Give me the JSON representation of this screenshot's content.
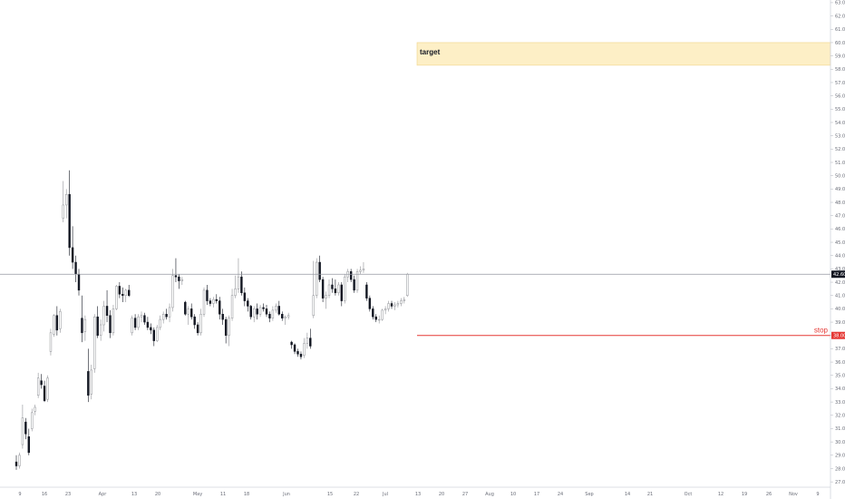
{
  "chart_data": {
    "type": "candlestick",
    "title": "",
    "xlabel": "",
    "ylabel": "",
    "ylim": [
      26.6,
      63.2
    ],
    "grid": false,
    "y_ticks": [
      27,
      28,
      29,
      30,
      31,
      32,
      33,
      34,
      35,
      36,
      37,
      38,
      39,
      40,
      41,
      42,
      43,
      44,
      45,
      46,
      47,
      48,
      49,
      50,
      51,
      52,
      53,
      54,
      55,
      56,
      57,
      58,
      59,
      60,
      61,
      62,
      63
    ],
    "x_tick_labels": [
      "9",
      "16",
      "23",
      "Apr",
      "13",
      "20",
      "May",
      "11",
      "18",
      "Jun",
      "15",
      "22",
      "Jul",
      "13",
      "20",
      "27",
      "Aug",
      "10",
      "17",
      "24",
      "Sep",
      "14",
      "21",
      "Oct",
      "12",
      "19",
      "26",
      "Nov",
      "9"
    ],
    "current_price": {
      "value": 42.6,
      "label": "42.60"
    },
    "stop": {
      "label": "stop",
      "value": 38.0,
      "value_label": "38.00"
    },
    "target_zone": {
      "label": "target",
      "from": 58.3,
      "to": 60.0
    },
    "candles": [
      [
        28.5,
        29.0,
        27.9,
        28.2
      ],
      [
        28.2,
        29.2,
        28.0,
        29.0
      ],
      [
        29.8,
        32.8,
        29.5,
        31.8
      ],
      [
        31.5,
        31.8,
        30.2,
        30.6
      ],
      [
        30.4,
        31.0,
        29.0,
        29.2
      ],
      [
        31.0,
        32.5,
        30.8,
        32.2
      ],
      [
        32.3,
        32.8,
        32.0,
        32.6
      ],
      [
        33.5,
        35.2,
        33.3,
        34.8
      ],
      [
        34.6,
        35.1,
        34.0,
        34.3
      ],
      [
        34.2,
        34.6,
        33.0,
        33.1
      ],
      [
        33.2,
        35.0,
        33.0,
        34.8
      ],
      [
        36.8,
        38.5,
        36.5,
        38.2
      ],
      [
        38.1,
        39.6,
        37.9,
        39.5
      ],
      [
        39.5,
        40.2,
        38.0,
        38.4
      ],
      [
        38.5,
        40.0,
        38.2,
        39.8
      ],
      [
        46.8,
        49.6,
        46.5,
        47.8
      ],
      [
        47.8,
        49.0,
        46.8,
        48.6
      ],
      [
        48.6,
        50.4,
        44.0,
        44.6
      ],
      [
        44.6,
        46.2,
        43.0,
        43.5
      ],
      [
        43.5,
        44.0,
        42.0,
        42.6
      ],
      [
        42.6,
        43.0,
        41.0,
        41.4
      ],
      [
        39.3,
        41.0,
        37.5,
        38.2
      ],
      [
        38.3,
        39.5,
        37.6,
        39.2
      ],
      [
        35.3,
        37.0,
        33.0,
        33.5
      ],
      [
        33.6,
        35.8,
        33.2,
        35.4
      ],
      [
        35.5,
        39.6,
        35.2,
        39.4
      ],
      [
        39.4,
        40.2,
        37.8,
        38.0
      ],
      [
        38.0,
        39.2,
        37.6,
        38.8
      ],
      [
        38.8,
        40.6,
        38.3,
        40.2
      ],
      [
        40.2,
        41.4,
        39.0,
        39.5
      ],
      [
        39.5,
        39.9,
        37.8,
        38.2
      ],
      [
        38.2,
        40.3,
        38.0,
        40.0
      ],
      [
        40.0,
        41.8,
        39.9,
        41.7
      ],
      [
        41.7,
        42.0,
        40.8,
        41.1
      ],
      [
        41.1,
        41.6,
        40.5,
        41.0
      ],
      [
        41.0,
        41.5,
        40.5,
        41.4
      ],
      [
        41.4,
        41.8,
        40.9,
        41.0
      ],
      [
        38.2,
        39.5,
        38.0,
        39.3
      ],
      [
        39.3,
        39.6,
        38.4,
        38.6
      ],
      [
        38.6,
        39.6,
        38.4,
        39.4
      ],
      [
        39.4,
        39.8,
        39.0,
        39.5
      ],
      [
        39.5,
        39.7,
        38.8,
        39.0
      ],
      [
        39.0,
        39.4,
        38.4,
        38.6
      ],
      [
        38.6,
        38.9,
        38.1,
        38.4
      ],
      [
        38.4,
        38.6,
        37.2,
        37.6
      ],
      [
        37.6,
        38.8,
        37.5,
        38.6
      ],
      [
        38.6,
        39.5,
        38.4,
        39.2
      ],
      [
        39.2,
        39.8,
        38.9,
        39.6
      ],
      [
        39.6,
        40.0,
        39.2,
        39.4
      ],
      [
        39.4,
        40.4,
        39.0,
        40.1
      ],
      [
        40.1,
        43.0,
        39.8,
        42.5
      ],
      [
        42.5,
        43.8,
        42.0,
        42.4
      ],
      [
        42.4,
        42.6,
        41.5,
        42.1
      ],
      [
        42.1,
        42.4,
        41.8,
        42.2
      ],
      [
        40.5,
        40.6,
        39.5,
        39.6
      ],
      [
        39.6,
        40.2,
        38.8,
        40.0
      ],
      [
        40.0,
        40.4,
        39.2,
        39.4
      ],
      [
        39.4,
        39.6,
        38.5,
        38.8
      ],
      [
        38.8,
        39.0,
        38.0,
        38.2
      ],
      [
        38.2,
        40.0,
        38.0,
        39.6
      ],
      [
        39.6,
        41.6,
        39.4,
        41.4
      ],
      [
        41.4,
        41.8,
        40.3,
        40.6
      ],
      [
        40.6,
        40.8,
        40.2,
        40.4
      ],
      [
        40.4,
        40.9,
        40.1,
        40.7
      ],
      [
        40.7,
        41.1,
        40.4,
        40.6
      ],
      [
        40.6,
        40.9,
        39.2,
        39.6
      ],
      [
        39.6,
        40.0,
        38.8,
        39.2
      ],
      [
        39.2,
        39.4,
        37.4,
        38.0
      ],
      [
        38.0,
        39.5,
        37.2,
        39.3
      ],
      [
        39.3,
        41.5,
        39.1,
        41.0
      ],
      [
        41.0,
        42.5,
        40.8,
        41.5
      ],
      [
        41.5,
        43.8,
        41.2,
        42.4
      ],
      [
        42.4,
        42.8,
        41.0,
        41.2
      ],
      [
        41.2,
        41.6,
        40.2,
        40.6
      ],
      [
        40.6,
        40.8,
        39.8,
        40.2
      ],
      [
        40.2,
        40.3,
        39.2,
        39.4
      ],
      [
        39.4,
        40.2,
        39.0,
        40.0
      ],
      [
        40.0,
        40.4,
        39.2,
        39.6
      ],
      [
        39.6,
        40.3,
        39.4,
        40.1
      ],
      [
        40.1,
        40.4,
        39.8,
        40.0
      ],
      [
        40.0,
        40.3,
        39.4,
        39.6
      ],
      [
        39.6,
        39.8,
        39.0,
        39.3
      ],
      [
        39.3,
        40.2,
        39.1,
        39.9
      ],
      [
        39.9,
        40.4,
        39.7,
        40.2
      ],
      [
        40.2,
        40.6,
        39.5,
        39.6
      ],
      [
        39.6,
        39.8,
        39.1,
        39.3
      ],
      [
        39.3,
        39.5,
        38.8,
        39.4
      ],
      [
        39.4,
        39.7,
        39.2,
        39.5
      ],
      [
        37.5,
        37.6,
        37.0,
        37.3
      ],
      [
        37.3,
        37.4,
        36.6,
        36.8
      ],
      [
        36.8,
        37.0,
        36.4,
        36.6
      ],
      [
        36.6,
        36.8,
        36.2,
        36.4
      ],
      [
        36.5,
        37.8,
        36.3,
        37.4
      ],
      [
        37.4,
        38.2,
        37.0,
        37.8
      ],
      [
        37.8,
        38.5,
        37.0,
        37.2
      ],
      [
        39.5,
        43.6,
        39.3,
        41.0
      ],
      [
        41.0,
        43.8,
        40.8,
        43.5
      ],
      [
        43.5,
        44.0,
        42.0,
        42.2
      ],
      [
        42.2,
        42.4,
        40.5,
        40.8
      ],
      [
        40.8,
        41.3,
        40.0,
        41.0
      ],
      [
        41.0,
        42.2,
        40.8,
        41.8
      ],
      [
        41.8,
        42.3,
        41.2,
        41.5
      ],
      [
        41.5,
        42.2,
        41.0,
        41.2
      ],
      [
        41.2,
        42.0,
        41.0,
        41.8
      ],
      [
        41.8,
        42.0,
        40.2,
        40.6
      ],
      [
        40.6,
        42.6,
        40.4,
        42.4
      ],
      [
        42.4,
        43.0,
        42.0,
        42.8
      ],
      [
        42.8,
        43.0,
        42.0,
        42.2
      ],
      [
        42.2,
        42.5,
        41.2,
        41.4
      ],
      [
        41.4,
        43.0,
        41.2,
        42.8
      ],
      [
        42.8,
        43.2,
        42.6,
        42.9
      ],
      [
        42.9,
        43.5,
        42.7,
        43.0
      ],
      [
        41.8,
        42.0,
        40.6,
        40.8
      ],
      [
        40.8,
        41.0,
        39.8,
        40.0
      ],
      [
        40.0,
        40.2,
        39.2,
        39.4
      ],
      [
        39.4,
        39.6,
        39.0,
        39.2
      ],
      [
        39.2,
        39.5,
        38.9,
        39.2
      ],
      [
        39.2,
        40.0,
        39.1,
        39.9
      ],
      [
        39.9,
        40.2,
        39.6,
        40.0
      ],
      [
        40.0,
        40.6,
        39.8,
        40.4
      ],
      [
        40.4,
        40.6,
        40.0,
        40.2
      ],
      [
        40.2,
        40.5,
        39.9,
        40.3
      ],
      [
        40.3,
        40.6,
        40.1,
        40.4
      ],
      [
        40.4,
        40.8,
        40.2,
        40.6
      ],
      [
        40.6,
        40.9,
        40.4,
        40.7
      ],
      [
        41.0,
        42.7,
        40.9,
        42.6
      ]
    ]
  }
}
